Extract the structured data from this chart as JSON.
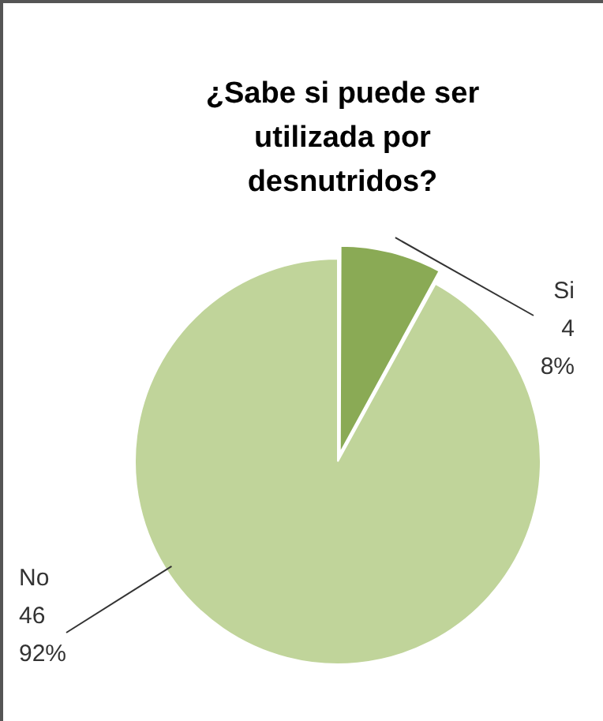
{
  "chart_data": {
    "type": "pie",
    "title": "¿Sabe si puede ser utilizada por desnutridos?",
    "categories": [
      "Si",
      "No"
    ],
    "values": [
      4,
      46
    ],
    "colors": [
      "#8aaa55",
      "#c0d49a"
    ],
    "value_labels": [
      "4\n8%",
      "46\n92%"
    ],
    "legend": false
  }
}
